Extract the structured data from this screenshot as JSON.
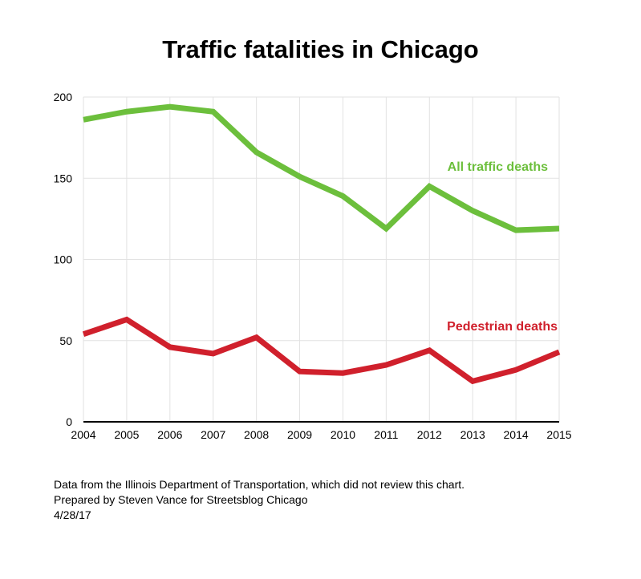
{
  "chart_data": {
    "type": "line",
    "title": "Traffic fatalities in Chicago",
    "xlabel": "",
    "ylabel": "",
    "x": [
      2004,
      2005,
      2006,
      2007,
      2008,
      2009,
      2010,
      2011,
      2012,
      2013,
      2014,
      2015
    ],
    "ylim": [
      0,
      200
    ],
    "yticks": [
      0,
      50,
      100,
      150,
      200
    ],
    "grid": true,
    "series": [
      {
        "name": "All traffic deaths",
        "color": "#6cbf3c",
        "values": [
          186,
          191,
          194,
          191,
          166,
          151,
          139,
          119,
          145,
          130,
          118,
          119
        ]
      },
      {
        "name": "Pedestrian deaths",
        "color": "#d0202c",
        "values": [
          54,
          63,
          46,
          42,
          52,
          31,
          30,
          35,
          44,
          25,
          32,
          43
        ]
      }
    ]
  },
  "notes": [
    "Data from the Illinois Department of Transportation, which did not review this chart.",
    "Prepared by Steven Vance for Streetsblog Chicago",
    "4/28/17"
  ]
}
